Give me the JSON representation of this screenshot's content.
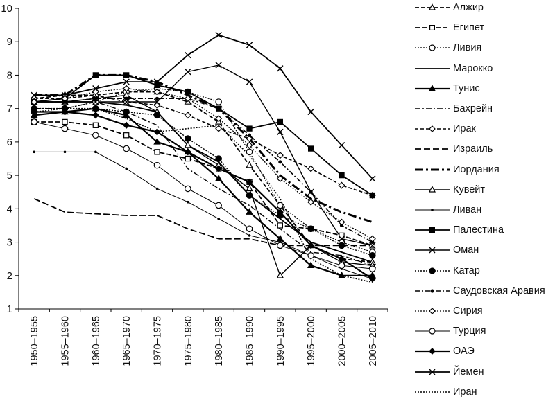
{
  "chart_data": {
    "type": "line",
    "title": "",
    "xlabel": "",
    "ylabel": "",
    "ylim": [
      1,
      10
    ],
    "yticks": [
      "1",
      "2",
      "3",
      "4",
      "5",
      "6",
      "7",
      "8",
      "9",
      "10"
    ],
    "grid": false,
    "legend_position": "right",
    "categories": [
      "1950–1955",
      "1955–1960",
      "1960–1965",
      "1965–1970",
      "1970–1975",
      "1975–1980",
      "1980–1985",
      "1985–1990",
      "1990–1995",
      "1995–2000",
      "2000–2005",
      "2005–2010"
    ],
    "series": [
      {
        "name": "Алжир",
        "values": [
          7.3,
          7.4,
          7.4,
          7.5,
          7.5,
          7.2,
          6.6,
          5.3,
          4.1,
          2.9,
          2.5,
          2.4
        ],
        "dash": "6 3",
        "marker": "triangle-open",
        "width": 1.8
      },
      {
        "name": "Египет",
        "values": [
          6.6,
          6.6,
          6.5,
          6.2,
          5.7,
          5.5,
          5.2,
          4.8,
          3.5,
          3.4,
          3.2,
          2.9
        ],
        "dash": "7 3",
        "marker": "square-open",
        "width": 1.8
      },
      {
        "name": "Ливия",
        "values": [
          6.9,
          7.0,
          7.2,
          7.5,
          7.6,
          7.5,
          7.2,
          5.7,
          4.1,
          3.4,
          3.0,
          2.7
        ],
        "dash": "2 2",
        "marker": "circle-open",
        "width": 1.3
      },
      {
        "name": "Марокко",
        "values": [
          7.2,
          7.2,
          7.2,
          7.1,
          6.9,
          5.9,
          5.4,
          4.4,
          3.7,
          3.0,
          2.7,
          2.4
        ],
        "dash": "",
        "marker": "none",
        "width": 1.8
      },
      {
        "name": "Тунис",
        "values": [
          6.8,
          6.9,
          7.0,
          6.8,
          6.0,
          5.7,
          4.9,
          3.9,
          3.1,
          2.3,
          2.0,
          2.0
        ],
        "dash": "",
        "marker": "triangle-filled",
        "width": 2.2
      },
      {
        "name": "Бахрейн",
        "values": [
          7.0,
          7.0,
          7.2,
          6.9,
          6.5,
          5.2,
          4.6,
          4.1,
          3.4,
          2.7,
          2.6,
          2.3
        ],
        "dash": "8 3 2 3",
        "marker": "none",
        "width": 1.4
      },
      {
        "name": "Ирак",
        "values": [
          7.3,
          7.3,
          7.4,
          7.2,
          7.1,
          6.8,
          6.4,
          6.1,
          5.6,
          5.2,
          4.7,
          4.4
        ],
        "dash": "5 3",
        "marker": "diamond-open",
        "width": 1.6
      },
      {
        "name": "Израиль",
        "values": [
          4.3,
          3.9,
          3.85,
          3.8,
          3.8,
          3.4,
          3.1,
          3.1,
          2.9,
          2.9,
          2.9,
          2.9
        ],
        "dash": "9 4",
        "marker": "none",
        "width": 1.8
      },
      {
        "name": "Иордания",
        "values": [
          7.4,
          7.4,
          8.0,
          8.0,
          7.8,
          7.4,
          7.0,
          6.1,
          5.0,
          4.3,
          3.9,
          3.6
        ],
        "dash": "12 4 3 4",
        "marker": "none",
        "width": 3.0
      },
      {
        "name": "Кувейт",
        "values": [
          7.2,
          7.2,
          7.3,
          7.4,
          6.9,
          5.9,
          5.3,
          4.6,
          2.0,
          2.9,
          2.4,
          2.3
        ],
        "dash": "",
        "marker": "triangle-open",
        "width": 1.4
      },
      {
        "name": "Ливан",
        "values": [
          5.7,
          5.7,
          5.7,
          5.2,
          4.6,
          4.2,
          3.7,
          3.2,
          3.0,
          2.6,
          2.2,
          1.9
        ],
        "dash": "",
        "marker": "dot-small",
        "width": 1.0
      },
      {
        "name": "Палестина",
        "values": [
          7.2,
          7.3,
          8.0,
          8.0,
          7.7,
          7.5,
          7.0,
          6.4,
          6.6,
          5.8,
          5.0,
          4.4
        ],
        "dash": "",
        "marker": "square-filled",
        "width": 1.8
      },
      {
        "name": "Оман",
        "values": [
          7.2,
          7.2,
          7.2,
          7.2,
          7.2,
          8.1,
          8.3,
          7.8,
          6.3,
          4.5,
          3.1,
          2.9
        ],
        "dash": "",
        "marker": "x",
        "width": 1.4
      },
      {
        "name": "Катар",
        "values": [
          7.0,
          7.0,
          7.0,
          6.9,
          6.8,
          6.1,
          5.5,
          4.4,
          3.8,
          3.4,
          2.9,
          2.6
        ],
        "dash": "2 2",
        "marker": "circle-filled",
        "width": 1.4
      },
      {
        "name": "Саудовская Аравия",
        "values": [
          7.2,
          7.2,
          7.3,
          7.3,
          7.3,
          7.3,
          7.0,
          6.2,
          5.4,
          4.5,
          3.5,
          3.0
        ],
        "dash": "7 3 2 3",
        "marker": "dot-medium",
        "width": 1.6
      },
      {
        "name": "Сирия",
        "values": [
          7.2,
          7.3,
          7.5,
          7.6,
          7.5,
          7.3,
          6.7,
          5.9,
          4.9,
          4.2,
          3.6,
          3.1
        ],
        "dash": "2 2",
        "marker": "diamond-open",
        "width": 1.3
      },
      {
        "name": "Турция",
        "values": [
          6.6,
          6.4,
          6.2,
          5.8,
          5.3,
          4.6,
          4.1,
          3.4,
          2.9,
          2.6,
          2.3,
          2.2
        ],
        "dash": "",
        "marker": "circle-open",
        "width": 1.0
      },
      {
        "name": "ОАЭ",
        "values": [
          6.9,
          6.9,
          6.8,
          6.5,
          6.3,
          5.7,
          5.2,
          4.8,
          3.9,
          2.9,
          2.5,
          1.9
        ],
        "dash": "",
        "marker": "diamond-filled",
        "width": 2.2
      },
      {
        "name": "Йемен",
        "values": [
          7.4,
          7.4,
          7.6,
          7.8,
          7.8,
          8.6,
          9.2,
          8.9,
          8.2,
          6.9,
          5.9,
          4.9
        ],
        "dash": "",
        "marker": "x",
        "width": 1.8
      },
      {
        "name": "Иран",
        "values": [
          7.0,
          7.0,
          7.0,
          6.7,
          6.3,
          6.4,
          6.5,
          5.6,
          4.3,
          2.5,
          2.0,
          1.8
        ],
        "dash": "2 2",
        "marker": "none",
        "width": 1.6
      }
    ]
  }
}
